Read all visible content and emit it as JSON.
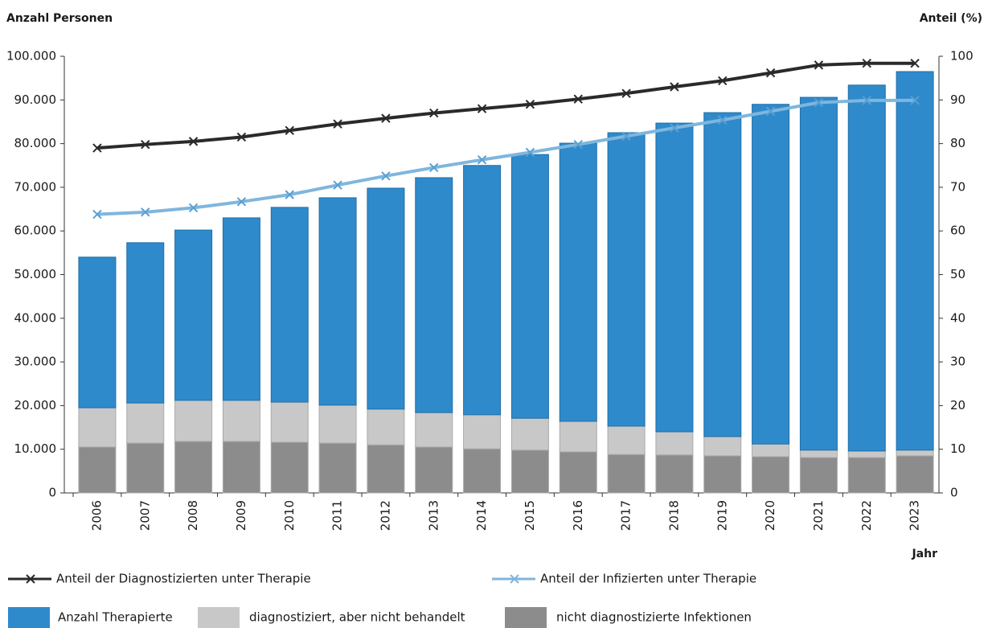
{
  "chart_data": {
    "type": "bar",
    "stacked": true,
    "y_axis_label": "Anzahl Personen",
    "y2_axis_label": "Anteil (%)",
    "x_axis_label": "Jahr",
    "categories": [
      "2006",
      "2007",
      "2008",
      "2009",
      "2010",
      "2011",
      "2012",
      "2013",
      "2014",
      "2015",
      "2016",
      "2017",
      "2018",
      "2019",
      "2020",
      "2021",
      "2022",
      "2023"
    ],
    "series": [
      {
        "name": "nicht diagnostizierte Infektionen",
        "color": "#8c8c8c",
        "values": [
          10500,
          11400,
          11800,
          11800,
          11600,
          11400,
          11000,
          10500,
          10100,
          9800,
          9400,
          8800,
          8700,
          8500,
          8300,
          8100,
          8100,
          8500
        ]
      },
      {
        "name": "diagnostiziert, aber nicht behandelt",
        "color": "#c8c8c8",
        "values": [
          9000,
          9200,
          9400,
          9400,
          9200,
          8700,
          8200,
          7900,
          7800,
          7300,
          7000,
          6500,
          5300,
          4400,
          2900,
          1700,
          1500,
          1300
        ]
      },
      {
        "name": "Anzahl Therapierte",
        "color": "#2f8acb",
        "values": [
          34500,
          36700,
          39000,
          41800,
          44600,
          47500,
          50600,
          53800,
          57100,
          60400,
          63700,
          67200,
          70700,
          74200,
          77800,
          80800,
          83800,
          86700
        ]
      },
      {
        "name": "Anteil der Diagnostizierten unter Therapie",
        "type": "line",
        "axis": "y2",
        "color": "#2a2a2a",
        "values": [
          79,
          79.8,
          80.5,
          81.5,
          83,
          84.5,
          85.8,
          87,
          88,
          89,
          90.2,
          91.5,
          93,
          94.4,
          96.2,
          98,
          98.4,
          98.4
        ]
      },
      {
        "name": "Anteil der Infizierten unter Therapie",
        "type": "line",
        "axis": "y2",
        "color": "#7fb6dd",
        "values": [
          63.8,
          64.3,
          65.3,
          66.7,
          68.3,
          70.5,
          72.6,
          74.5,
          76.3,
          78,
          79.8,
          81.7,
          83.6,
          85.4,
          87.4,
          89.4,
          89.9,
          89.9
        ]
      }
    ],
    "ylim": [
      0,
      100000
    ],
    "yticks": [
      0,
      {
        "value": 10000,
        "label": "10.000"
      },
      {
        "value": 20000,
        "label": "20.000"
      },
      {
        "value": 30000,
        "label": "30.000"
      },
      {
        "value": 40000,
        "label": "40.000"
      },
      {
        "value": 50000,
        "label": "50.000"
      },
      {
        "value": 60000,
        "label": "60.000"
      },
      {
        "value": 70000,
        "label": "70.000"
      },
      {
        "value": 80000,
        "label": "80.000"
      },
      {
        "value": 90000,
        "label": "90.000"
      },
      {
        "value": 100000,
        "label": "100.000"
      }
    ],
    "y2lim": [
      0,
      100
    ],
    "y2ticks": [
      0,
      10,
      20,
      30,
      40,
      50,
      60,
      70,
      80,
      90,
      100
    ],
    "grid": false
  }
}
